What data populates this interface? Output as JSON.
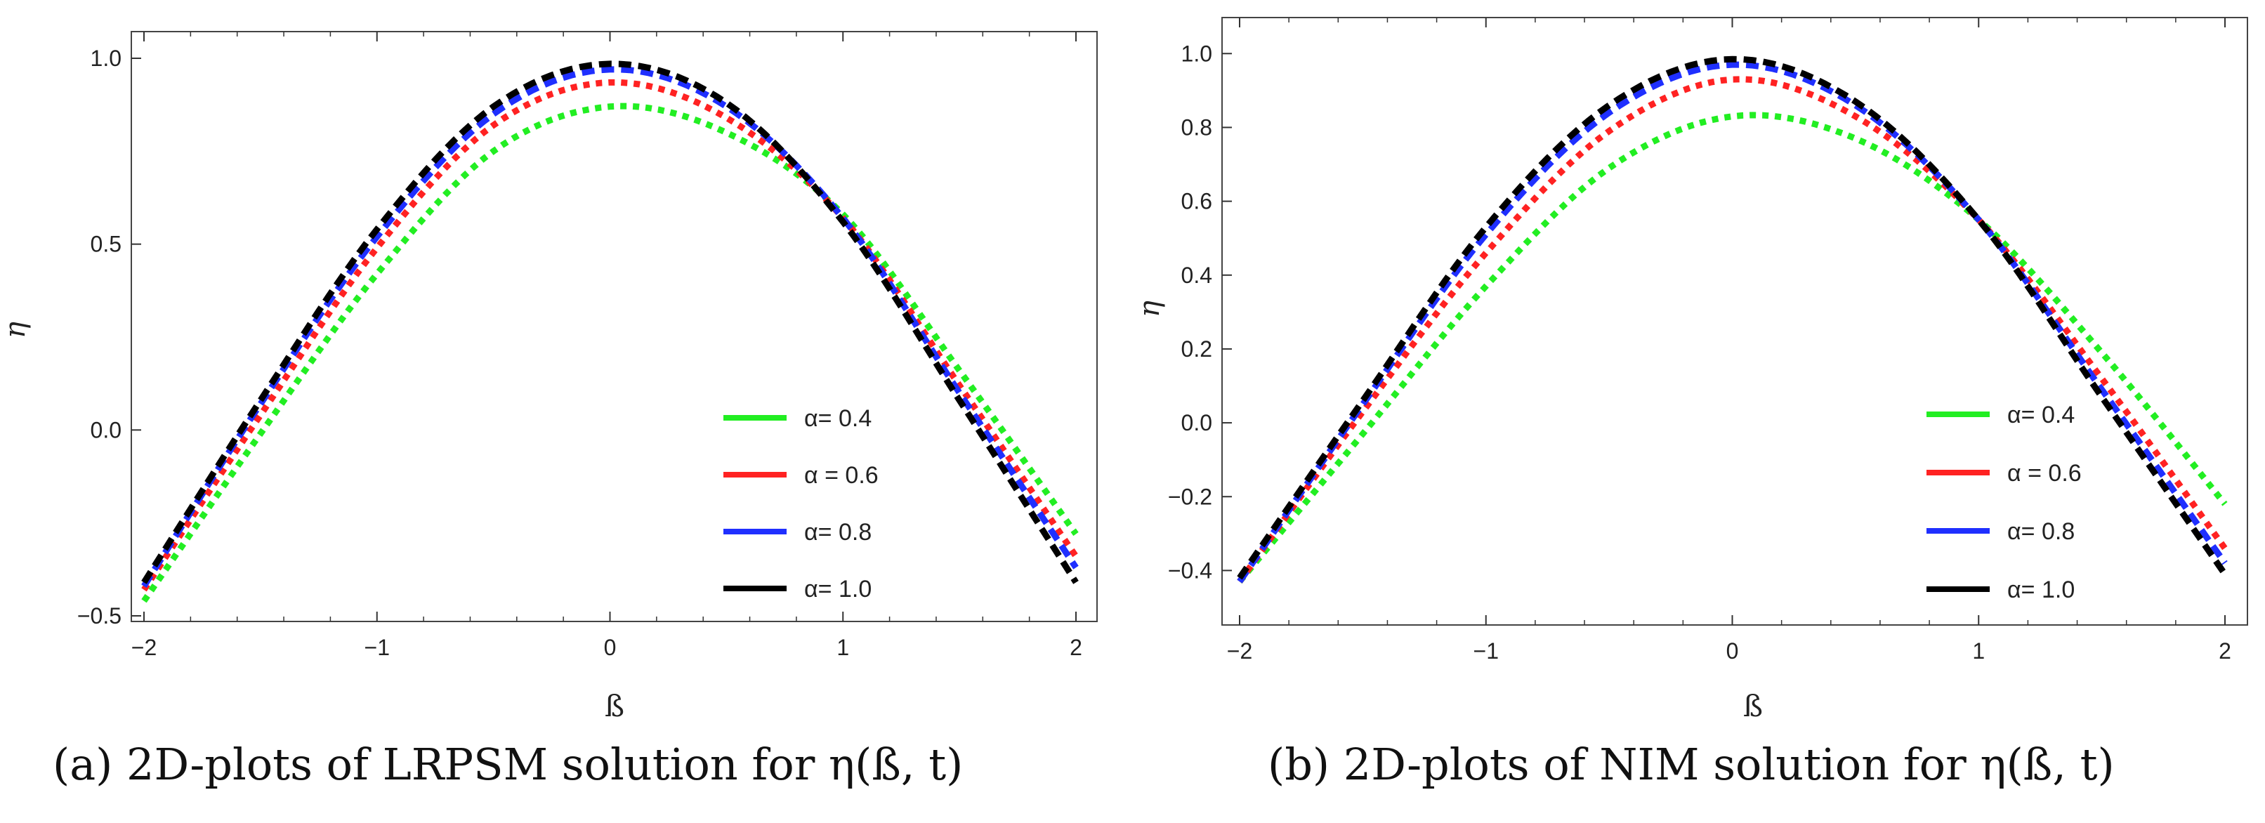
{
  "colors": {
    "green": "#22ee22",
    "red": "#ff2222",
    "blue": "#1f2fff",
    "black": "#000000",
    "axis": "#333333"
  },
  "chart_data": [
    {
      "type": "line",
      "xlabel": "ß",
      "ylabel": "η",
      "xlim": [
        -2,
        2
      ],
      "ylim": [
        -0.5,
        1.0
      ],
      "xticks": [
        -2,
        -1,
        0,
        1,
        2
      ],
      "xtick_labels": [
        "−2",
        "−1",
        "0",
        "1",
        "2"
      ],
      "yticks": [
        -0.5,
        0.0,
        0.5,
        1.0
      ],
      "ytick_labels": [
        "−0.5",
        "0.0",
        "0.5",
        "1.0"
      ],
      "legend_position": "bottom-right",
      "caption": "(a)  2D-plots of LRPSM solution for η(ß, t)",
      "series": [
        {
          "name": "α= 0.4",
          "color_key": "green",
          "style": "dotted",
          "x": [
            -2,
            -1.5,
            -1,
            -0.5,
            0,
            0.5,
            1,
            1.5,
            2
          ],
          "y": [
            -0.46,
            -0.01,
            0.42,
            0.75,
            0.87,
            0.8,
            0.58,
            0.16,
            -0.28
          ]
        },
        {
          "name": "α = 0.6",
          "color_key": "red",
          "style": "dotted",
          "x": [
            -2,
            -1.5,
            -1,
            -0.5,
            0,
            0.5,
            1,
            1.5,
            2
          ],
          "y": [
            -0.43,
            0.04,
            0.49,
            0.82,
            0.935,
            0.84,
            0.57,
            0.12,
            -0.34
          ]
        },
        {
          "name": "α= 0.8",
          "color_key": "blue",
          "style": "dashed",
          "x": [
            -2,
            -1.5,
            -1,
            -0.5,
            0,
            0.5,
            1,
            1.5,
            2
          ],
          "y": [
            -0.42,
            0.07,
            0.52,
            0.85,
            0.97,
            0.87,
            0.57,
            0.1,
            -0.37
          ]
        },
        {
          "name": "α= 1.0",
          "color_key": "black",
          "style": "dashed",
          "x": [
            -2,
            -1.5,
            -1,
            -0.5,
            0,
            0.5,
            1,
            1.5,
            2
          ],
          "y": [
            -0.41,
            0.08,
            0.54,
            0.87,
            0.985,
            0.88,
            0.56,
            0.08,
            -0.41
          ]
        }
      ]
    },
    {
      "type": "line",
      "xlabel": "ß",
      "ylabel": "η",
      "xlim": [
        -2,
        2
      ],
      "ylim": [
        -0.5,
        1.05
      ],
      "xticks": [
        -2,
        -1,
        0,
        1,
        2
      ],
      "xtick_labels": [
        "−2",
        "−1",
        "0",
        "1",
        "2"
      ],
      "yticks": [
        -0.4,
        -0.2,
        0.0,
        0.2,
        0.4,
        0.6,
        0.8,
        1.0
      ],
      "ytick_labels": [
        "−0.4",
        "−0.2",
        "0.0",
        "0.2",
        "0.4",
        "0.6",
        "0.8",
        "1.0"
      ],
      "legend_position": "bottom-right",
      "caption": "(b)  2D-plots of NIM solution for η(ß, t)",
      "series": [
        {
          "name": "α= 0.4",
          "color_key": "green",
          "style": "dotted",
          "x": [
            -2,
            -1.5,
            -1,
            -0.5,
            0,
            0.5,
            1,
            1.5,
            2
          ],
          "y": [
            -0.43,
            -0.03,
            0.37,
            0.69,
            0.83,
            0.77,
            0.55,
            0.19,
            -0.22
          ]
        },
        {
          "name": "α = 0.6",
          "color_key": "red",
          "style": "dotted",
          "x": [
            -2,
            -1.5,
            -1,
            -0.5,
            0,
            0.5,
            1,
            1.5,
            2
          ],
          "y": [
            -0.43,
            0.03,
            0.46,
            0.79,
            0.93,
            0.83,
            0.55,
            0.12,
            -0.34
          ]
        },
        {
          "name": "α= 0.8",
          "color_key": "blue",
          "style": "dashed",
          "x": [
            -2,
            -1.5,
            -1,
            -0.5,
            0,
            0.5,
            1,
            1.5,
            2
          ],
          "y": [
            -0.43,
            0.05,
            0.51,
            0.84,
            0.97,
            0.86,
            0.55,
            0.09,
            -0.38
          ]
        },
        {
          "name": "α= 1.0",
          "color_key": "black",
          "style": "dashed",
          "x": [
            -2,
            -1.5,
            -1,
            -0.5,
            0,
            0.5,
            1,
            1.5,
            2
          ],
          "y": [
            -0.42,
            0.06,
            0.53,
            0.86,
            0.985,
            0.87,
            0.55,
            0.07,
            -0.41
          ]
        }
      ]
    }
  ]
}
